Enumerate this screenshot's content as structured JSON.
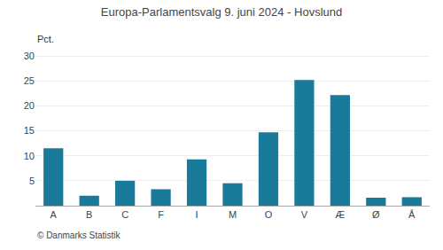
{
  "chart_data": {
    "type": "bar",
    "title": "Europa-Parlamentsvalg 9. juni 2024 - Hovslund",
    "ylabel": "Pct.",
    "annotations": [
      "© Danmarks Statistik"
    ],
    "categories": [
      "A",
      "B",
      "C",
      "F",
      "I",
      "M",
      "O",
      "V",
      "Æ",
      "Ø",
      "Å"
    ],
    "values": [
      11.5,
      2.0,
      5.0,
      3.3,
      9.3,
      4.5,
      14.7,
      25.2,
      22.2,
      1.6,
      1.7
    ],
    "color": "#1a7a9a",
    "ylim": [
      0,
      32
    ],
    "yticks": [
      5,
      10,
      15,
      20,
      25,
      30
    ],
    "grid": true
  }
}
